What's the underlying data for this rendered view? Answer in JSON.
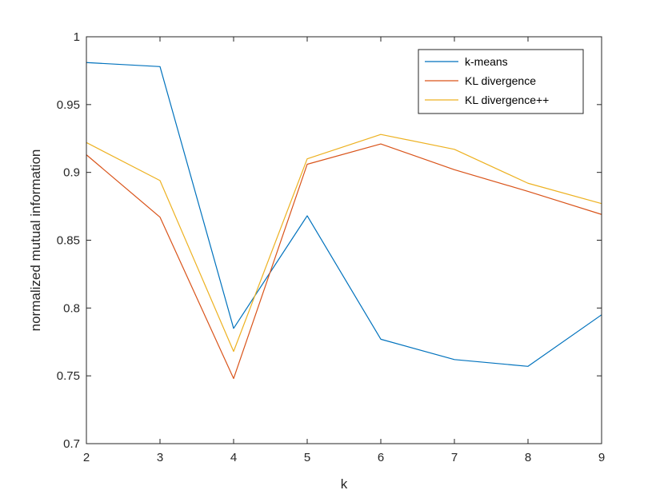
{
  "chart_data": {
    "type": "line",
    "title": "",
    "xlabel": "k",
    "ylabel": "normalized mutual information",
    "x": [
      2,
      3,
      4,
      5,
      6,
      7,
      8,
      9
    ],
    "xlim": [
      2,
      9
    ],
    "ylim": [
      0.7,
      1
    ],
    "xticks": [
      "2",
      "3",
      "4",
      "5",
      "6",
      "7",
      "8",
      "9"
    ],
    "yticks": [
      "0.7",
      "0.75",
      "0.8",
      "0.85",
      "0.9",
      "0.95",
      "1"
    ],
    "grid": false,
    "legend_position": "top-right",
    "series": [
      {
        "name": "k-means",
        "color": "#0072BD",
        "values": [
          0.981,
          0.978,
          0.785,
          0.868,
          0.777,
          0.762,
          0.757,
          0.795
        ]
      },
      {
        "name": "KL divergence",
        "color": "#D95319",
        "values": [
          0.913,
          0.867,
          0.748,
          0.906,
          0.921,
          0.902,
          0.886,
          0.869
        ]
      },
      {
        "name": "KL divergence++",
        "color": "#EDB120",
        "values": [
          0.922,
          0.894,
          0.768,
          0.91,
          0.928,
          0.917,
          0.892,
          0.877
        ]
      }
    ]
  }
}
